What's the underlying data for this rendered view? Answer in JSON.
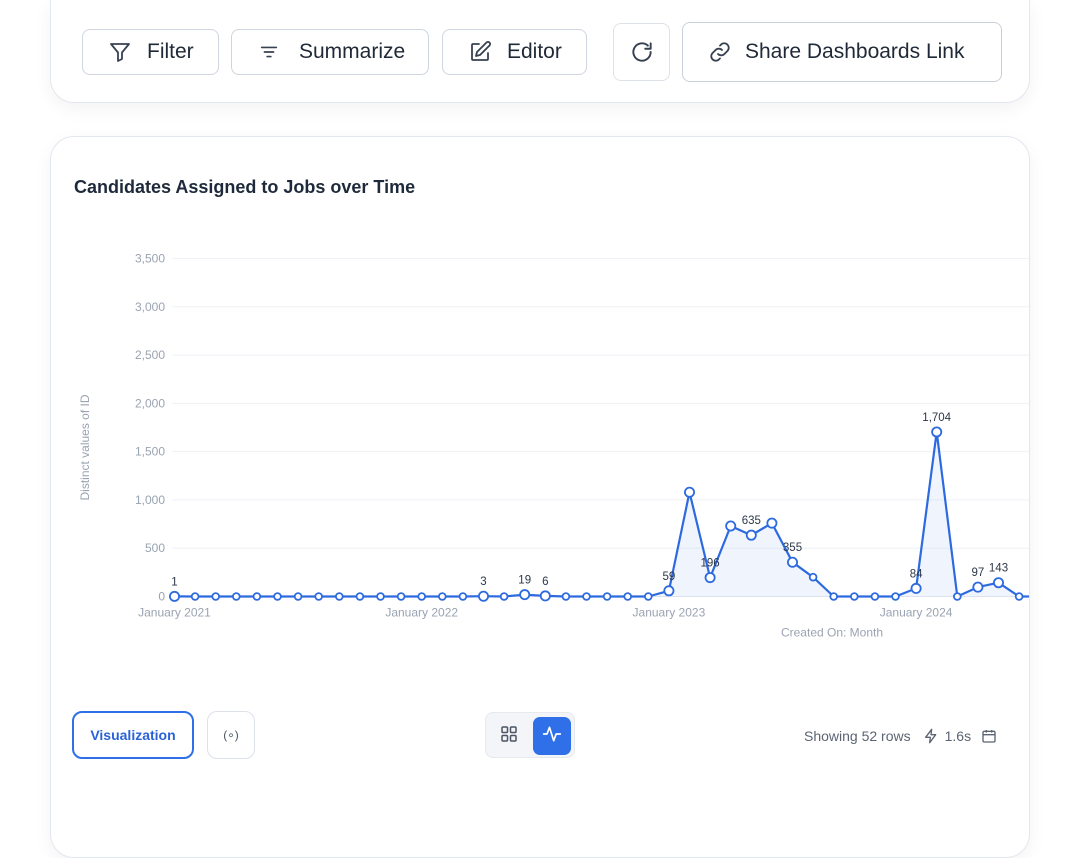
{
  "toolbar": {
    "filter_label": "Filter",
    "summarize_label": "Summarize",
    "editor_label": "Editor",
    "share_label": "Share Dashboards Link"
  },
  "card": {
    "title": "Candidates Assigned to Jobs over Time"
  },
  "footer": {
    "visualization_label": "Visualization",
    "settings_glyph": "(∘)",
    "rows_text": "Showing 52 rows",
    "time_text": "1.6s"
  },
  "colors": {
    "accent": "#2f6fe8",
    "line": "#2d6ae0"
  },
  "chart_data": {
    "type": "line",
    "title": "Candidates Assigned to Jobs over Time",
    "xlabel": "Created On: Month",
    "ylabel": "Distinct values of ID",
    "ylim": [
      0,
      3500
    ],
    "yticks": [
      0,
      500,
      1000,
      1500,
      2000,
      2500,
      3000,
      3500
    ],
    "xticks": [
      {
        "label": "January 2021",
        "index": 0
      },
      {
        "label": "January 2022",
        "index": 12
      },
      {
        "label": "January 2023",
        "index": 24
      },
      {
        "label": "January 2024",
        "index": 36
      }
    ],
    "grid": true,
    "x": [
      "2021-01",
      "2021-02",
      "2021-03",
      "2021-04",
      "2021-05",
      "2021-06",
      "2021-07",
      "2021-08",
      "2021-09",
      "2021-10",
      "2021-11",
      "2021-12",
      "2022-01",
      "2022-02",
      "2022-03",
      "2022-04",
      "2022-05",
      "2022-06",
      "2022-07",
      "2022-08",
      "2022-09",
      "2022-10",
      "2022-11",
      "2022-12",
      "2023-01",
      "2023-02",
      "2023-03",
      "2023-04",
      "2023-05",
      "2023-06",
      "2023-07",
      "2023-08",
      "2023-09",
      "2023-10",
      "2023-11",
      "2023-12",
      "2024-01",
      "2024-02",
      "2024-03",
      "2024-04",
      "2024-05",
      "2024-06",
      "2024-07"
    ],
    "series": [
      {
        "values": [
          1,
          0,
          0,
          0,
          0,
          0,
          0,
          0,
          0,
          0,
          0,
          0,
          0,
          0,
          0,
          3,
          0,
          19,
          6,
          0,
          0,
          0,
          0,
          0,
          59,
          1080,
          196,
          730,
          635,
          760,
          355,
          200,
          0,
          0,
          0,
          0,
          84,
          1704,
          0,
          97,
          143,
          0,
          0
        ],
        "labels": {
          "0": "1",
          "15": "3",
          "17": "19",
          "18": "6",
          "24": "59",
          "26": "196",
          "28": "635",
          "30": "355",
          "36": "84",
          "37": "1,704",
          "39": "97",
          "40": "143"
        }
      }
    ]
  }
}
